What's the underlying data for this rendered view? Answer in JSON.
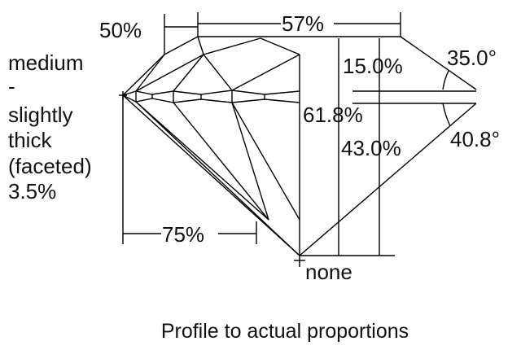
{
  "labels": {
    "star_length": "50%",
    "table": "57%",
    "girdle_1": "medium",
    "girdle_2": "-",
    "girdle_3": "slightly",
    "girdle_4": "thick",
    "girdle_5": "(faceted)",
    "girdle_6": "3.5%",
    "crown_height": "15.0%",
    "crown_angle": "35.0°",
    "total_depth": "61.8%",
    "pavilion_depth": "43.0%",
    "pavilion_angle": "40.8°",
    "lower_half": "75%",
    "culet": "none"
  },
  "caption": "Profile to actual proportions"
}
